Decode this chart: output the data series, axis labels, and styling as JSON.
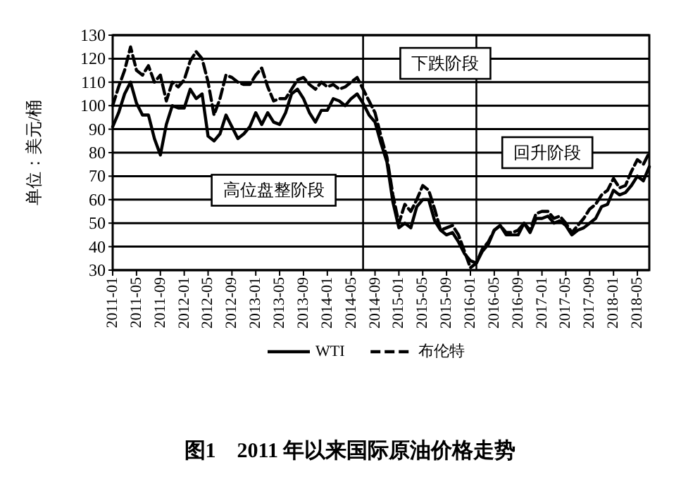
{
  "chart_data": {
    "type": "line",
    "title": "图1　2011 年以来国际原油价格走势",
    "ylabel": "单位：美元/桶",
    "x": [
      "2011-01",
      "2011-02",
      "2011-03",
      "2011-04",
      "2011-05",
      "2011-06",
      "2011-07",
      "2011-08",
      "2011-09",
      "2011-10",
      "2011-11",
      "2011-12",
      "2012-01",
      "2012-02",
      "2012-03",
      "2012-04",
      "2012-05",
      "2012-06",
      "2012-07",
      "2012-08",
      "2012-09",
      "2012-10",
      "2012-11",
      "2012-12",
      "2013-01",
      "2013-02",
      "2013-03",
      "2013-04",
      "2013-05",
      "2013-06",
      "2013-07",
      "2013-08",
      "2013-09",
      "2013-10",
      "2013-11",
      "2013-12",
      "2014-01",
      "2014-02",
      "2014-03",
      "2014-04",
      "2014-05",
      "2014-06",
      "2014-07",
      "2014-08",
      "2014-09",
      "2014-10",
      "2014-11",
      "2014-12",
      "2015-01",
      "2015-02",
      "2015-03",
      "2015-04",
      "2015-05",
      "2015-06",
      "2015-07",
      "2015-08",
      "2015-09",
      "2015-10",
      "2015-11",
      "2015-12",
      "2016-01",
      "2016-02",
      "2016-03",
      "2016-04",
      "2016-05",
      "2016-06",
      "2016-07",
      "2016-08",
      "2016-09",
      "2016-10",
      "2016-11",
      "2016-12",
      "2017-01",
      "2017-02",
      "2017-03",
      "2017-04",
      "2017-05",
      "2017-06",
      "2017-07",
      "2017-08",
      "2017-09",
      "2017-10",
      "2017-11",
      "2017-12",
      "2018-01",
      "2018-02",
      "2018-03",
      "2018-04",
      "2018-05",
      "2018-06",
      "2018-07"
    ],
    "series": [
      {
        "name": "WTI",
        "color": "#000000",
        "line_style": "solid",
        "values": [
          91,
          97,
          105,
          110,
          101,
          96,
          96,
          86,
          79,
          92,
          100,
          99,
          99,
          107,
          103,
          105,
          87,
          85,
          88,
          96,
          91,
          86,
          88,
          91,
          97,
          92,
          97,
          93,
          92,
          97,
          105,
          107,
          103,
          97,
          93,
          98,
          98,
          103,
          102,
          100,
          103,
          105,
          101,
          96,
          93,
          84,
          76,
          59,
          48,
          50,
          48,
          57,
          60,
          60,
          51,
          47,
          45,
          46,
          42,
          37,
          34,
          33,
          38,
          41,
          47,
          49,
          45,
          45,
          45,
          50,
          46,
          52,
          52,
          53,
          50,
          51,
          49,
          45,
          47,
          48,
          50,
          52,
          57,
          58,
          64,
          62,
          63,
          66,
          70,
          68,
          74
        ]
      },
      {
        "name": "布伦特",
        "color": "#000000",
        "line_style": "dashed",
        "values": [
          100,
          108,
          115,
          125,
          115,
          113,
          117,
          110,
          113,
          102,
          110,
          108,
          111,
          119,
          123,
          120,
          110,
          96,
          103,
          113,
          112,
          110,
          109,
          109,
          113,
          116,
          108,
          102,
          103,
          103,
          107,
          111,
          112,
          109,
          107,
          110,
          108,
          109,
          107,
          108,
          110,
          112,
          107,
          102,
          97,
          87,
          78,
          62,
          50,
          58,
          55,
          60,
          66,
          64,
          56,
          47,
          48,
          49,
          45,
          38,
          31,
          33,
          39,
          42,
          47,
          49,
          46,
          46,
          47,
          50,
          47,
          54,
          55,
          55,
          52,
          53,
          50,
          46,
          49,
          52,
          56,
          58,
          62,
          64,
          69,
          65,
          66,
          72,
          77,
          75,
          80
        ]
      }
    ],
    "xlim": [
      "2011-01",
      "2018-07"
    ],
    "xticks": [
      "2011-01",
      "2011-05",
      "2011-09",
      "2012-01",
      "2012-05",
      "2012-09",
      "2013-01",
      "2013-05",
      "2013-09",
      "2014-01",
      "2014-05",
      "2014-09",
      "2015-01",
      "2015-05",
      "2015-09",
      "2016-01",
      "2016-05",
      "2016-09",
      "2017-01",
      "2017-05",
      "2017-09",
      "2018-01",
      "2018-05"
    ],
    "ylim": [
      30,
      130
    ],
    "yticks": [
      30,
      40,
      50,
      60,
      70,
      80,
      90,
      100,
      110,
      120,
      130
    ],
    "grid": "y",
    "legend": "bottom",
    "ref_lines": [
      {
        "axis": "x",
        "value": "2014-07",
        "color": "#000000"
      },
      {
        "axis": "x",
        "value": "2016-02",
        "color": "#000000"
      }
    ],
    "annotations": [
      "高位盘整阶段",
      "下跌阶段",
      "回升阶段"
    ]
  }
}
